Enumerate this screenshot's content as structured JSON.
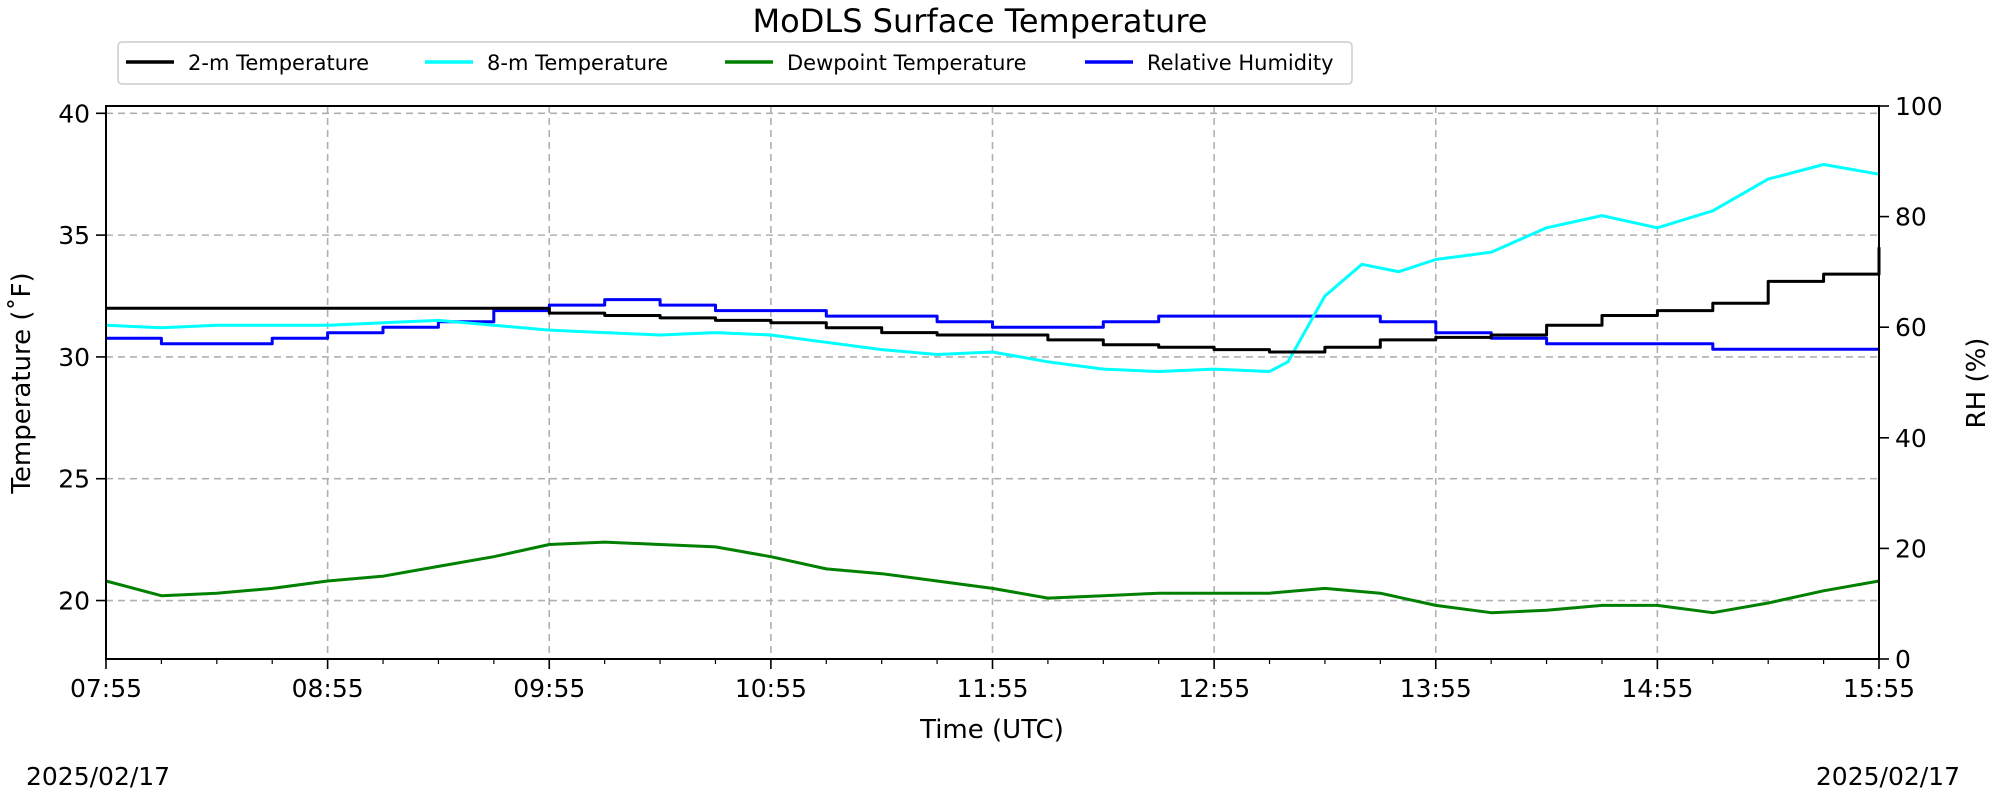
{
  "chart_data": {
    "type": "line",
    "title": "MoDLS Surface Temperature",
    "xlabel": "Time (UTC)",
    "ylabel_left": "Temperature (˚F)",
    "ylabel_right": "RH (%)",
    "x_ticks": [
      "07:55",
      "08:55",
      "09:55",
      "10:55",
      "11:55",
      "12:55",
      "13:55",
      "14:55",
      "15:55"
    ],
    "xlim": [
      "07:55",
      "15:55"
    ],
    "y_left_ticks": [
      20,
      25,
      30,
      35,
      40
    ],
    "ylim_left": [
      17.6,
      40.3
    ],
    "y_right_ticks": [
      0,
      20,
      40,
      60,
      80,
      100
    ],
    "ylim_right": [
      0,
      100
    ],
    "date_left": "2025/02/17",
    "date_right": "2025/02/17",
    "grid": true,
    "legend_position": "top-left",
    "series": [
      {
        "name": "2-m Temperature",
        "color": "#000000",
        "axis": "left",
        "x": [
          "07:55",
          "08:10",
          "08:25",
          "08:40",
          "08:55",
          "09:10",
          "09:25",
          "09:40",
          "09:55",
          "10:10",
          "10:25",
          "10:40",
          "10:55",
          "11:10",
          "11:25",
          "11:40",
          "11:55",
          "12:10",
          "12:25",
          "12:40",
          "12:55",
          "13:10",
          "13:20",
          "13:25",
          "13:40",
          "13:55",
          "14:10",
          "14:25",
          "14:40",
          "14:55",
          "15:10",
          "15:25",
          "15:40",
          "15:55"
        ],
        "y": [
          32.0,
          32.0,
          32.0,
          32.0,
          32.0,
          32.0,
          32.0,
          32.0,
          31.8,
          31.7,
          31.6,
          31.5,
          31.4,
          31.2,
          31.0,
          30.9,
          30.9,
          30.7,
          30.5,
          30.4,
          30.3,
          30.2,
          30.2,
          30.4,
          30.7,
          30.8,
          30.9,
          31.3,
          31.7,
          31.9,
          32.2,
          33.1,
          33.4,
          34.5
        ]
      },
      {
        "name": "8-m Temperature",
        "color": "#00FFFF",
        "axis": "left",
        "x": [
          "07:55",
          "08:10",
          "08:25",
          "08:40",
          "08:55",
          "09:10",
          "09:25",
          "09:40",
          "09:55",
          "10:10",
          "10:25",
          "10:40",
          "10:55",
          "11:10",
          "11:25",
          "11:40",
          "11:55",
          "12:10",
          "12:25",
          "12:40",
          "12:55",
          "13:10",
          "13:15",
          "13:25",
          "13:35",
          "13:45",
          "13:55",
          "14:10",
          "14:25",
          "14:40",
          "14:55",
          "15:10",
          "15:25",
          "15:40",
          "15:55"
        ],
        "y": [
          31.3,
          31.2,
          31.3,
          31.3,
          31.3,
          31.4,
          31.5,
          31.3,
          31.1,
          31.0,
          30.9,
          31.0,
          30.9,
          30.6,
          30.3,
          30.1,
          30.2,
          29.8,
          29.5,
          29.4,
          29.5,
          29.4,
          29.8,
          32.5,
          33.8,
          33.5,
          34.0,
          34.3,
          35.3,
          35.8,
          35.3,
          36.0,
          37.3,
          37.9,
          37.5
        ]
      },
      {
        "name": "Dewpoint Temperature",
        "color": "#008000",
        "axis": "left",
        "x": [
          "07:55",
          "08:10",
          "08:25",
          "08:40",
          "08:55",
          "09:10",
          "09:25",
          "09:40",
          "09:55",
          "10:10",
          "10:25",
          "10:40",
          "10:55",
          "11:10",
          "11:25",
          "11:40",
          "11:55",
          "12:10",
          "12:25",
          "12:40",
          "12:55",
          "13:10",
          "13:25",
          "13:40",
          "13:55",
          "14:10",
          "14:25",
          "14:40",
          "14:55",
          "15:10",
          "15:25",
          "15:40",
          "15:55"
        ],
        "y": [
          20.8,
          20.2,
          20.3,
          20.5,
          20.8,
          21.0,
          21.4,
          21.8,
          22.3,
          22.4,
          22.3,
          22.2,
          21.8,
          21.3,
          21.1,
          20.8,
          20.5,
          20.1,
          20.2,
          20.3,
          20.3,
          20.3,
          20.5,
          20.3,
          19.8,
          19.5,
          19.6,
          19.8,
          19.8,
          19.5,
          19.9,
          20.4,
          20.8
        ]
      },
      {
        "name": "Relative Humidity",
        "color": "#0000FF",
        "axis": "right",
        "x": [
          "07:55",
          "08:10",
          "08:25",
          "08:40",
          "08:55",
          "09:10",
          "09:25",
          "09:40",
          "09:55",
          "10:10",
          "10:25",
          "10:40",
          "10:55",
          "11:10",
          "11:25",
          "11:40",
          "11:55",
          "12:10",
          "12:25",
          "12:40",
          "12:55",
          "13:10",
          "13:25",
          "13:40",
          "13:55",
          "14:10",
          "14:25",
          "14:40",
          "14:55",
          "15:10",
          "15:25",
          "15:40",
          "15:55"
        ],
        "y": [
          58,
          57,
          57,
          58,
          59,
          60,
          61,
          63,
          64,
          65,
          64,
          63,
          63,
          62,
          62,
          61,
          60,
          60,
          61,
          62,
          62,
          62,
          62,
          61,
          59,
          58,
          57,
          57,
          57,
          56,
          56,
          56,
          56
        ]
      }
    ]
  }
}
